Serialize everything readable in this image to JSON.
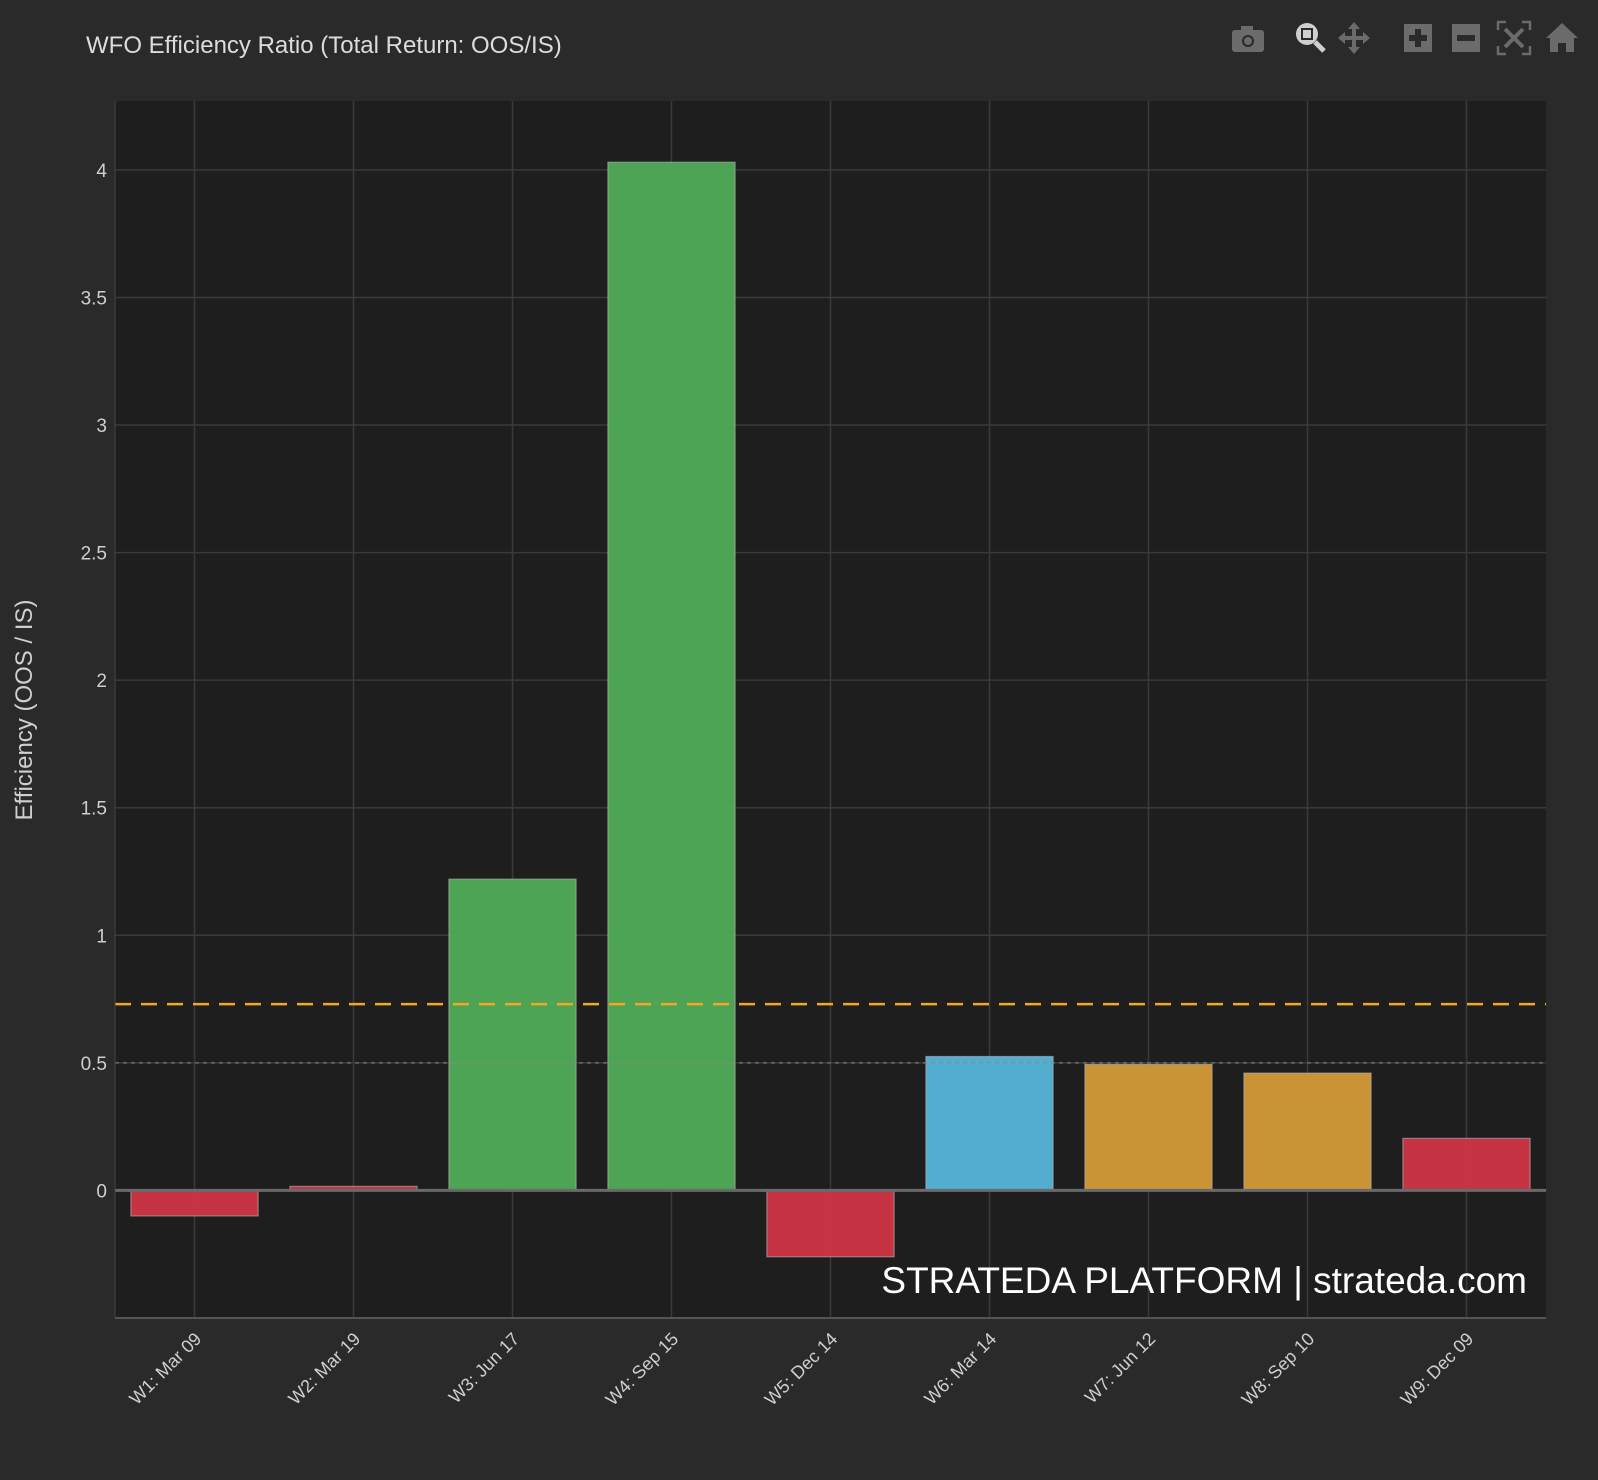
{
  "title": "WFO Efficiency Ratio (Total Return: OOS/IS)",
  "toolbar": [
    "camera-icon",
    "zoom-icon",
    "pan-icon",
    "zoom-in-icon",
    "zoom-out-icon",
    "autoscale-icon",
    "home-icon"
  ],
  "watermark": "STRATEDA PLATFORM | strateda.com",
  "chart_data": {
    "type": "bar",
    "title": "WFO Efficiency Ratio (Total Return: OOS/IS)",
    "xlabel": "",
    "ylabel": "Efficiency (OOS / IS)",
    "categories": [
      "W1: Mar 09",
      "W2: Mar 19",
      "W3: Jun 17",
      "W4: Sep 15",
      "W5: Dec 14",
      "W6: Mar 14",
      "W7: Jun 12",
      "W8: Sep 10",
      "W9: Dec 09"
    ],
    "values": [
      -0.1,
      0.016,
      1.22,
      4.03,
      -0.26,
      0.525,
      0.494,
      0.46,
      0.204
    ],
    "colors": [
      "#d03545",
      "#d03545",
      "#4fac57",
      "#4fac57",
      "#d03545",
      "#56b5da",
      "#d49a38",
      "#d49a38",
      "#d03545"
    ],
    "ylim": [
      -0.5,
      4.27
    ],
    "yticks": [
      0,
      0.5,
      1,
      1.5,
      2,
      2.5,
      3,
      3.5,
      4
    ],
    "ytick_labels": [
      "0",
      "0.5",
      "1",
      "1.5",
      "2",
      "2.5",
      "3",
      "3.5",
      "4"
    ],
    "reference_lines": [
      {
        "y": 0.73,
        "style": "dashed",
        "color": "#f5a623"
      },
      {
        "y": 0.5,
        "style": "dotted",
        "color": "#888888"
      }
    ],
    "grid": true
  }
}
